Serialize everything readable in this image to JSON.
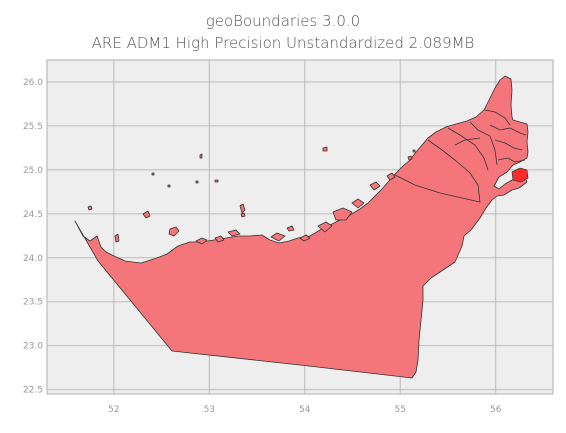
{
  "title_line1": "geoBoundaries 3.0.0",
  "title_line2": "ARE ADM1 High Precision Unstandardized 2.089MB",
  "colors": {
    "background": "#eeeeee",
    "grid": "#bbbbbb",
    "fill": "#f4767a",
    "edge": "#333333",
    "highlight": "#ff2b2b"
  },
  "chart_data": {
    "type": "map",
    "xlim": [
      51.3,
      56.6
    ],
    "ylim": [
      22.45,
      26.25
    ],
    "xticks": [
      52,
      53,
      54,
      55,
      56
    ],
    "yticks": [
      22.5,
      23.0,
      23.5,
      24.0,
      24.5,
      25.0,
      25.5,
      26.0
    ],
    "xtick_labels": [
      "52",
      "53",
      "54",
      "55",
      "56"
    ],
    "ytick_labels": [
      "22.5",
      "23.0",
      "23.5",
      "24.0",
      "24.5",
      "25.0",
      "25.5",
      "26.0"
    ],
    "grid": true
  }
}
